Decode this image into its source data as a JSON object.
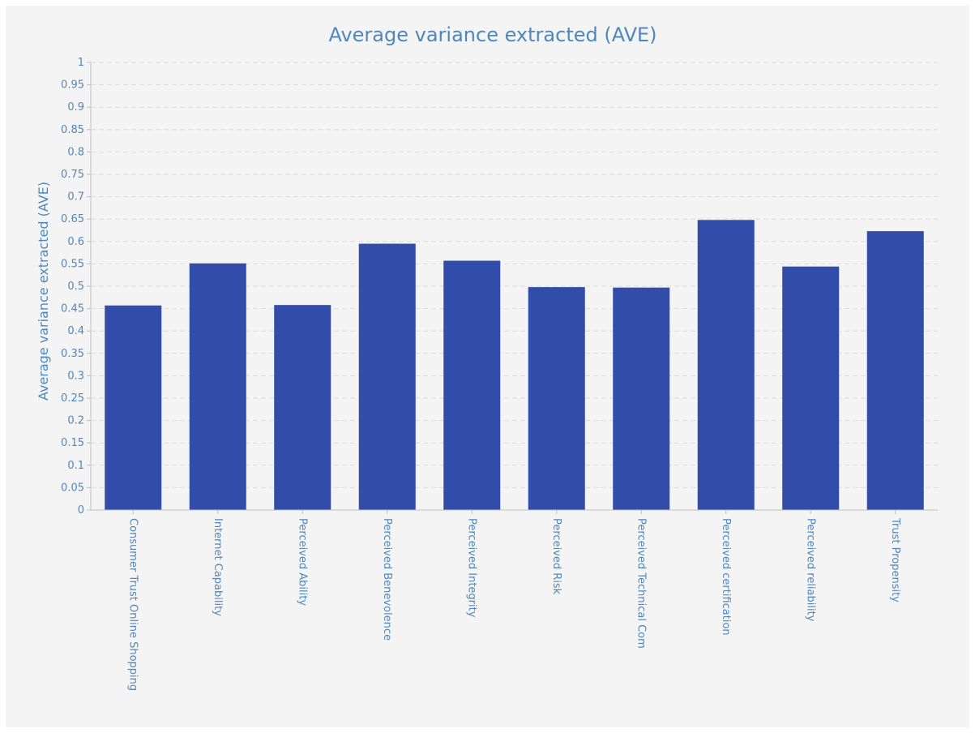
{
  "colors": {
    "bar": "#314ca9",
    "text": "#4f87bd",
    "grid": "#dddddd",
    "axis": "#bfbfbf",
    "background": "#f4f4f4"
  },
  "chart_data": {
    "type": "bar",
    "title": "Average variance extracted (AVE)",
    "xlabel": "",
    "ylabel": "Average variance extracted (AVE)",
    "ylim": [
      0,
      1
    ],
    "ytick_step": 0.05,
    "yticks": [
      "0",
      "0.05",
      "0.1",
      "0.15",
      "0.2",
      "0.25",
      "0.3",
      "0.35",
      "0.4",
      "0.45",
      "0.5",
      "0.55",
      "0.6",
      "0.65",
      "0.7",
      "0.75",
      "0.8",
      "0.85",
      "0.9",
      "0.95",
      "1"
    ],
    "grid": true,
    "legend": "none",
    "categories": [
      "Consumer Trust Online Shopping",
      "Internet Capability",
      "Perceived Ability",
      "Perceived Benevolence",
      "Perceived Integrity",
      "Perceived Risk",
      "Perceived Technical Com",
      "Perceived certification",
      "Perceived reliability",
      "Trust Propensity"
    ],
    "values": [
      0.457,
      0.551,
      0.458,
      0.595,
      0.557,
      0.498,
      0.497,
      0.648,
      0.544,
      0.623
    ]
  }
}
